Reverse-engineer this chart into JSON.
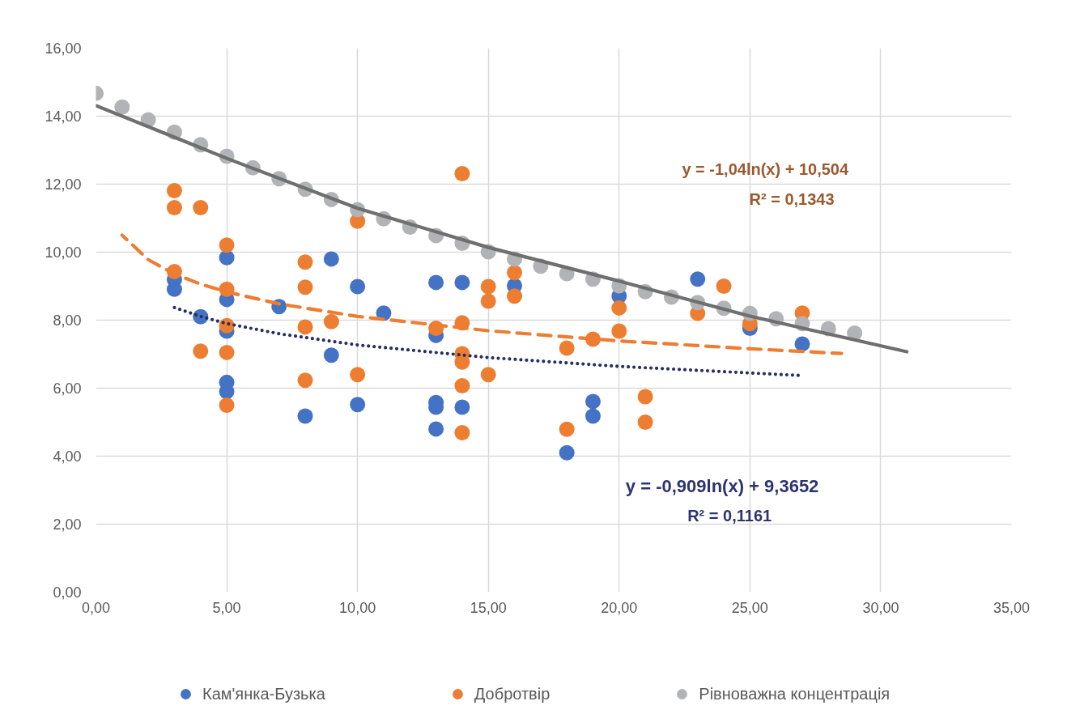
{
  "chart_data": {
    "type": "scatter",
    "xlim": [
      0,
      35
    ],
    "ylim": [
      0,
      16
    ],
    "xticks": [
      {
        "value": 0,
        "label": "0,00"
      },
      {
        "value": 5,
        "label": "5,00"
      },
      {
        "value": 10,
        "label": "10,00"
      },
      {
        "value": 15,
        "label": "15,00"
      },
      {
        "value": 20,
        "label": "20,00"
      },
      {
        "value": 25,
        "label": "25,00"
      },
      {
        "value": 30,
        "label": "30,00"
      },
      {
        "value": 35,
        "label": "35,00"
      }
    ],
    "yticks": [
      {
        "value": 0,
        "label": "0,00"
      },
      {
        "value": 2,
        "label": "2,00"
      },
      {
        "value": 4,
        "label": "4,00"
      },
      {
        "value": 6,
        "label": "6,00"
      },
      {
        "value": 8,
        "label": "8,00"
      },
      {
        "value": 10,
        "label": "10,00"
      },
      {
        "value": 12,
        "label": "12,00"
      },
      {
        "value": 14,
        "label": "14,00"
      },
      {
        "value": 16,
        "label": "16,00"
      }
    ],
    "grid": true,
    "legend": "bottom",
    "marker": "circle",
    "series": [
      {
        "name": "Кам'янка-Бузька",
        "color": "#4472c4",
        "x": [
          3,
          3,
          4,
          5,
          5,
          5,
          5,
          5,
          7,
          8,
          9,
          9,
          10,
          10,
          11,
          13,
          13,
          13,
          13,
          13,
          14,
          14,
          16,
          18,
          19,
          19,
          20,
          23,
          25,
          27
        ],
        "values": [
          8.91,
          9.19,
          8.1,
          9.84,
          8.61,
          7.68,
          6.17,
          5.9,
          8.4,
          5.18,
          9.8,
          6.97,
          8.99,
          5.52,
          8.21,
          9.11,
          7.55,
          5.58,
          5.44,
          4.8,
          9.11,
          5.44,
          9.01,
          4.1,
          5.61,
          5.18,
          8.71,
          9.21,
          7.76,
          7.3
        ]
      },
      {
        "name": "Добротвір",
        "color": "#ed7d31",
        "x": [
          3,
          3,
          3,
          4,
          4,
          5,
          5,
          5,
          5,
          5,
          8,
          8,
          8,
          8,
          9,
          10,
          10,
          13,
          14,
          14,
          14,
          14,
          14,
          14,
          15,
          15,
          15,
          16,
          16,
          18,
          18,
          19,
          20,
          20,
          21,
          21,
          23,
          24,
          25,
          27
        ],
        "values": [
          11.81,
          11.31,
          9.43,
          11.31,
          7.09,
          10.21,
          8.91,
          7.84,
          7.05,
          5.5,
          9.71,
          8.97,
          7.8,
          6.23,
          7.96,
          10.91,
          6.4,
          7.76,
          12.31,
          7.92,
          7.01,
          6.77,
          6.07,
          4.69,
          8.99,
          8.56,
          6.4,
          9.4,
          8.71,
          7.18,
          4.79,
          7.44,
          8.36,
          7.68,
          5.75,
          5.0,
          8.2,
          9.0,
          7.9,
          8.21
        ]
      },
      {
        "name": "Рівноважна концентрація",
        "color": "#b1b3b6",
        "x": [
          0,
          1,
          2,
          3,
          4,
          5,
          6,
          7,
          8,
          9,
          10,
          11,
          12,
          13,
          14,
          15,
          16,
          17,
          18,
          19,
          20,
          21,
          22,
          23,
          24,
          25,
          26,
          27,
          28,
          29
        ],
        "values": [
          14.67,
          14.27,
          13.89,
          13.53,
          13.16,
          12.82,
          12.48,
          12.16,
          11.85,
          11.55,
          11.25,
          10.98,
          10.74,
          10.49,
          10.26,
          10.01,
          9.8,
          9.59,
          9.37,
          9.21,
          9.01,
          8.84,
          8.68,
          8.52,
          8.35,
          8.2,
          8.04,
          7.9,
          7.75,
          7.62
        ]
      },
      {
        "type": "line",
        "marker": "none",
        "color": "#ed7d31",
        "line_style": "dashed",
        "x": [
          1,
          2,
          3,
          4,
          5,
          7,
          10,
          15,
          20,
          25,
          28.5
        ],
        "values": [
          10.5,
          9.78,
          9.36,
          9.06,
          8.83,
          8.48,
          8.11,
          7.69,
          7.39,
          7.16,
          7.02
        ]
      },
      {
        "type": "line",
        "marker": "none",
        "color": "#262d63",
        "line_style": "dotted",
        "x": [
          3,
          4,
          5,
          7,
          10,
          15,
          20,
          27
        ],
        "values": [
          8.37,
          8.11,
          7.9,
          7.6,
          7.27,
          6.9,
          6.64,
          6.37
        ]
      },
      {
        "type": "line",
        "marker": "none",
        "color": "#6f6f6f",
        "line_style": "solid",
        "x": [
          0,
          5,
          10,
          15,
          20,
          25,
          31
        ],
        "values": [
          14.31,
          12.76,
          11.29,
          10.14,
          9.15,
          8.12,
          7.07
        ]
      }
    ],
    "annotations": [
      "y = -1,04ln(x) + 10,504",
      "R² = 0,1343",
      "y = -0,909ln(x) + 9,3652",
      "R² = 0,1161"
    ]
  }
}
